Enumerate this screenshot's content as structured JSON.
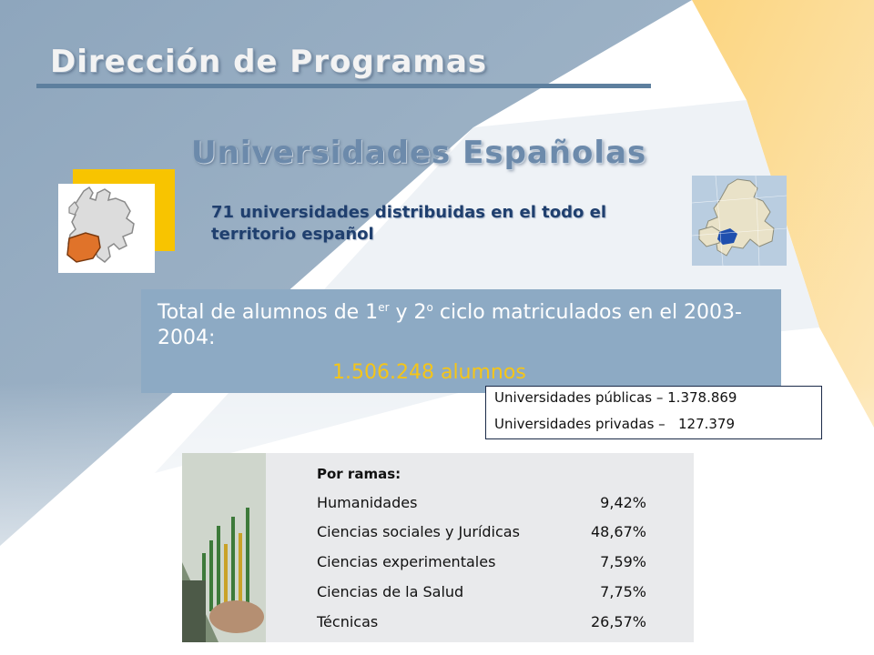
{
  "title": "Dirección de Programas",
  "subtitle": "Universidades Españolas",
  "intro": "71 universidades distribuidas en el todo el territorio español",
  "total": {
    "pre": "Total de alumnos de 1",
    "sup1": "er",
    "mid": " y 2",
    "sup2": "o",
    "post": " ciclo matriculados en el 2003-2004:",
    "count": "1.506.248 alumnos"
  },
  "universities": {
    "publicas": "Universidades públicas – 1.378.869",
    "privadas": "Universidades privadas –   127.379"
  },
  "ramas": {
    "heading": "Por ramas:",
    "rows": [
      {
        "label": "Humanidades",
        "value": "9,42%"
      },
      {
        "label": "Ciencias sociales y Jurídicas",
        "value": "48,67%"
      },
      {
        "label": "Ciencias experimentales",
        "value": "7,59%"
      },
      {
        "label": "Ciencias de la Salud",
        "value": "7,75%"
      },
      {
        "label": "Técnicas",
        "value": "26,57%"
      }
    ]
  },
  "colors": {
    "accent_blue": "#8daac4",
    "title_blue": "#6c8aab",
    "highlight_yellow": "#f5c518",
    "rule_blue": "#5d7f9e"
  },
  "icons": [
    "europe-spain-map-icon",
    "europe-map-photo",
    "finance-chart-photo"
  ]
}
